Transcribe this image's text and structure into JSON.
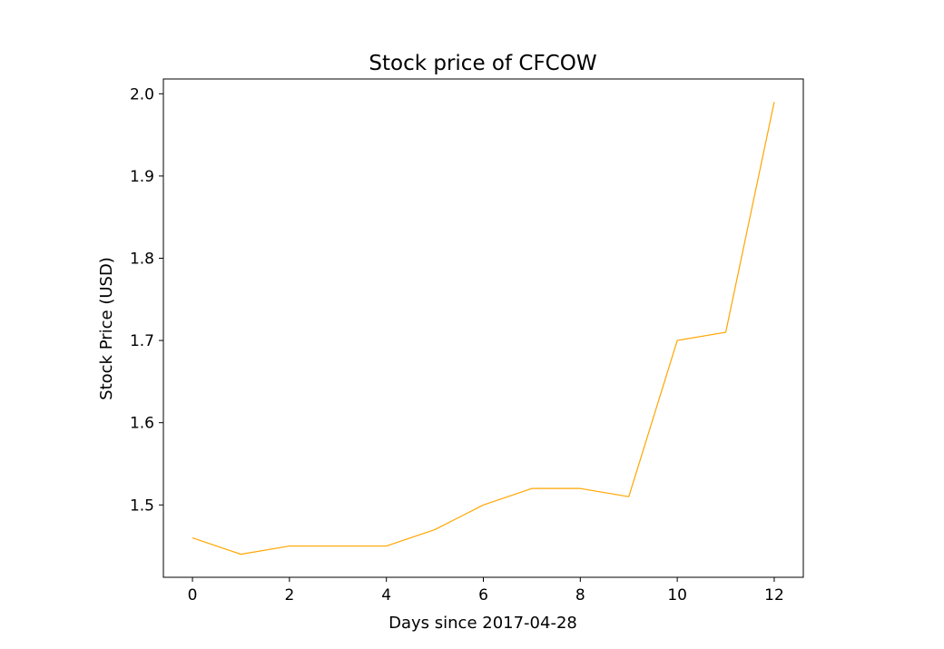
{
  "chart_data": {
    "type": "line",
    "title": "Stock price of CFCOW",
    "xlabel": "Days since 2017-04-28",
    "ylabel": "Stock Price (USD)",
    "x": [
      0,
      1,
      2,
      3,
      4,
      5,
      6,
      7,
      8,
      9,
      10,
      11,
      12
    ],
    "series": [
      {
        "values": [
          1.46,
          1.44,
          1.45,
          1.45,
          1.45,
          1.47,
          1.5,
          1.52,
          1.52,
          1.51,
          1.7,
          1.71,
          1.99
        ],
        "color": "#FFA500"
      }
    ],
    "xlim": [
      -0.6,
      12.6
    ],
    "ylim": [
      1.412,
      2.018
    ],
    "xticks": [
      0,
      2,
      4,
      6,
      8,
      10,
      12
    ],
    "xtick_labels": [
      "0",
      "2",
      "4",
      "6",
      "8",
      "10",
      "12"
    ],
    "yticks": [
      1.5,
      1.6,
      1.7,
      1.8,
      1.9,
      2.0
    ],
    "ytick_labels": [
      "1.5",
      "1.6",
      "1.7",
      "1.8",
      "1.9",
      "2.0"
    ],
    "grid": false,
    "legend": "none"
  }
}
